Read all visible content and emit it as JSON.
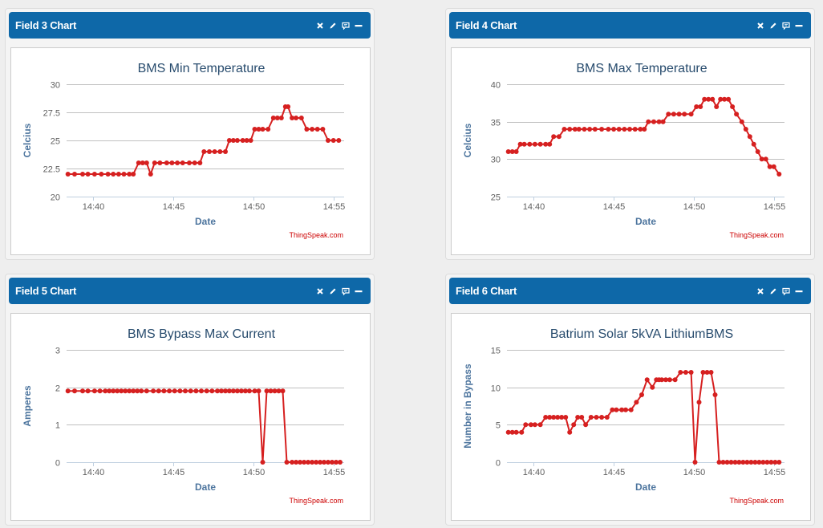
{
  "colors": {
    "header": "#0e68a8",
    "series": "#d62020",
    "grid": "#c0c0c0",
    "axis_title": "#4d759e",
    "title": "#274b6d",
    "credit": "#cc0000"
  },
  "panels": [
    {
      "title": "Field 3 Chart",
      "icons": [
        "close-icon",
        "edit-icon",
        "comment-icon",
        "minimize-icon"
      ],
      "chart_data": {
        "type": "line",
        "title": "BMS Min Temperature",
        "xlabel": "Date",
        "ylabel": "Celcius",
        "credit": "ThingSpeak.com",
        "ylim": [
          20,
          30
        ],
        "xlim": [
          "14:38:20",
          "14:55:40"
        ],
        "yticks": [
          20,
          22.5,
          25,
          27.5,
          30
        ],
        "yticklabels": [
          "20",
          "22.5",
          "25",
          "27.5",
          "30"
        ],
        "xticks": [
          "14:40",
          "14:45",
          "14:50",
          "14:55"
        ],
        "grid": true,
        "legend": "none",
        "series": [
          {
            "x": [
              "14:38:25",
              "14:38:50",
              "14:39:20",
              "14:39:40",
              "14:40:05",
              "14:40:30",
              "14:40:55",
              "14:41:15",
              "14:41:35",
              "14:41:55",
              "14:42:15",
              "14:42:30",
              "14:42:50",
              "14:43:05",
              "14:43:20",
              "14:43:35",
              "14:43:50",
              "14:44:10",
              "14:44:35",
              "14:44:55",
              "14:45:15",
              "14:45:35",
              "14:46:00",
              "14:46:20",
              "14:46:40",
              "14:46:55",
              "14:47:15",
              "14:47:35",
              "14:47:55",
              "14:48:15",
              "14:48:30",
              "14:48:45",
              "14:49:00",
              "14:49:20",
              "14:49:35",
              "14:49:50",
              "14:50:05",
              "14:50:20",
              "14:50:35",
              "14:50:55",
              "14:51:15",
              "14:51:30",
              "14:51:45",
              "14:52:00",
              "14:52:10",
              "14:52:25",
              "14:52:40",
              "14:53:00",
              "14:53:20",
              "14:53:40",
              "14:54:00",
              "14:54:20",
              "14:54:40",
              "14:55:00",
              "14:55:20"
            ],
            "y": [
              22,
              22,
              22,
              22,
              22,
              22,
              22,
              22,
              22,
              22,
              22,
              22,
              23,
              23,
              23,
              22,
              23,
              23,
              23,
              23,
              23,
              23,
              23,
              23,
              23,
              24,
              24,
              24,
              24,
              24,
              25,
              25,
              25,
              25,
              25,
              25,
              26,
              26,
              26,
              26,
              27,
              27,
              27,
              28,
              28,
              27,
              27,
              27,
              26,
              26,
              26,
              26,
              25,
              25,
              25
            ]
          }
        ]
      }
    },
    {
      "title": "Field 4 Chart",
      "icons": [
        "close-icon",
        "edit-icon",
        "comment-icon",
        "minimize-icon"
      ],
      "chart_data": {
        "type": "line",
        "title": "BMS Max Temperature",
        "xlabel": "Date",
        "ylabel": "Celcius",
        "credit": "ThingSpeak.com",
        "ylim": [
          25,
          40
        ],
        "xlim": [
          "14:38:20",
          "14:55:40"
        ],
        "yticks": [
          25,
          30,
          35,
          40
        ],
        "yticklabels": [
          "25",
          "30",
          "35",
          "40"
        ],
        "xticks": [
          "14:40",
          "14:45",
          "14:50",
          "14:55"
        ],
        "grid": true,
        "legend": "none",
        "series": [
          {
            "x": [
              "14:38:25",
              "14:38:40",
              "14:38:55",
              "14:39:10",
              "14:39:25",
              "14:39:45",
              "14:40:05",
              "14:40:25",
              "14:40:45",
              "14:41:00",
              "14:41:15",
              "14:41:35",
              "14:41:55",
              "14:42:15",
              "14:42:35",
              "14:42:50",
              "14:43:10",
              "14:43:30",
              "14:43:50",
              "14:44:15",
              "14:44:40",
              "14:45:00",
              "14:45:20",
              "14:45:40",
              "14:46:00",
              "14:46:20",
              "14:46:40",
              "14:46:55",
              "14:47:10",
              "14:47:30",
              "14:47:50",
              "14:48:05",
              "14:48:25",
              "14:48:45",
              "14:49:05",
              "14:49:25",
              "14:49:50",
              "14:50:10",
              "14:50:25",
              "14:50:40",
              "14:50:55",
              "14:51:10",
              "14:51:25",
              "14:51:40",
              "14:51:55",
              "14:52:10",
              "14:52:25",
              "14:52:40",
              "14:53:00",
              "14:53:15",
              "14:53:30",
              "14:53:45",
              "14:54:00",
              "14:54:15",
              "14:54:30",
              "14:54:45",
              "14:55:00",
              "14:55:20"
            ],
            "y": [
              31,
              31,
              31,
              32,
              32,
              32,
              32,
              32,
              32,
              32,
              33,
              33,
              34,
              34,
              34,
              34,
              34,
              34,
              34,
              34,
              34,
              34,
              34,
              34,
              34,
              34,
              34,
              34,
              35,
              35,
              35,
              35,
              36,
              36,
              36,
              36,
              36,
              37,
              37,
              38,
              38,
              38,
              37,
              38,
              38,
              38,
              37,
              36,
              35,
              34,
              33,
              32,
              31,
              30,
              30,
              29,
              29,
              28
            ]
          }
        ]
      }
    },
    {
      "title": "Field 5 Chart",
      "icons": [
        "close-icon",
        "edit-icon",
        "comment-icon",
        "minimize-icon"
      ],
      "chart_data": {
        "type": "line",
        "title": "BMS Bypass Max Current",
        "xlabel": "Date",
        "ylabel": "Amperes",
        "credit": "ThingSpeak.com",
        "ylim": [
          0,
          3
        ],
        "xlim": [
          "14:38:20",
          "14:55:40"
        ],
        "yticks": [
          0,
          1,
          2,
          3
        ],
        "yticklabels": [
          "0",
          "1",
          "2",
          "3"
        ],
        "xticks": [
          "14:40",
          "14:45",
          "14:50",
          "14:55"
        ],
        "grid": true,
        "legend": "none",
        "series": [
          {
            "x": [
              "14:38:25",
              "14:38:50",
              "14:39:20",
              "14:39:40",
              "14:40:05",
              "14:40:25",
              "14:40:45",
              "14:41:00",
              "14:41:15",
              "14:41:30",
              "14:41:45",
              "14:42:00",
              "14:42:15",
              "14:42:30",
              "14:42:45",
              "14:43:00",
              "14:43:20",
              "14:43:45",
              "14:44:05",
              "14:44:25",
              "14:44:45",
              "14:45:05",
              "14:45:25",
              "14:45:45",
              "14:46:05",
              "14:46:25",
              "14:46:45",
              "14:47:05",
              "14:47:25",
              "14:47:45",
              "14:48:00",
              "14:48:15",
              "14:48:30",
              "14:48:45",
              "14:49:00",
              "14:49:15",
              "14:49:30",
              "14:49:45",
              "14:50:05",
              "14:50:20",
              "14:50:35",
              "14:50:50",
              "14:51:05",
              "14:51:20",
              "14:51:35",
              "14:51:50",
              "14:52:05",
              "14:52:25",
              "14:52:40",
              "14:52:55",
              "14:53:10",
              "14:53:25",
              "14:53:40",
              "14:53:55",
              "14:54:10",
              "14:54:25",
              "14:54:40",
              "14:54:55",
              "14:55:10",
              "14:55:25"
            ],
            "y": [
              1.9,
              1.9,
              1.9,
              1.9,
              1.9,
              1.9,
              1.9,
              1.9,
              1.9,
              1.9,
              1.9,
              1.9,
              1.9,
              1.9,
              1.9,
              1.9,
              1.9,
              1.9,
              1.9,
              1.9,
              1.9,
              1.9,
              1.9,
              1.9,
              1.9,
              1.9,
              1.9,
              1.9,
              1.9,
              1.9,
              1.9,
              1.9,
              1.9,
              1.9,
              1.9,
              1.9,
              1.9,
              1.9,
              1.9,
              1.9,
              0,
              1.9,
              1.9,
              1.9,
              1.9,
              1.9,
              0,
              0,
              0,
              0,
              0,
              0,
              0,
              0,
              0,
              0,
              0,
              0,
              0,
              0
            ]
          }
        ]
      }
    },
    {
      "title": "Field 6 Chart",
      "icons": [
        "close-icon",
        "edit-icon",
        "comment-icon",
        "minimize-icon"
      ],
      "chart_data": {
        "type": "line",
        "title": "Batrium Solar 5kVA LithiumBMS",
        "xlabel": "Date",
        "ylabel": "Number in Bypass",
        "credit": "ThingSpeak.com",
        "ylim": [
          0,
          15
        ],
        "xlim": [
          "14:38:20",
          "14:55:40"
        ],
        "yticks": [
          0,
          5,
          10,
          15
        ],
        "yticklabels": [
          "0",
          "5",
          "10",
          "15"
        ],
        "xticks": [
          "14:40",
          "14:45",
          "14:50",
          "14:55"
        ],
        "grid": true,
        "legend": "none",
        "series": [
          {
            "x": [
              "14:38:25",
              "14:38:40",
              "14:38:55",
              "14:39:15",
              "14:39:30",
              "14:39:50",
              "14:40:05",
              "14:40:25",
              "14:40:45",
              "14:41:00",
              "14:41:15",
              "14:41:30",
              "14:41:45",
              "14:42:00",
              "14:42:15",
              "14:42:30",
              "14:42:45",
              "14:43:00",
              "14:43:15",
              "14:43:35",
              "14:43:55",
              "14:44:15",
              "14:44:35",
              "14:44:55",
              "14:45:10",
              "14:45:30",
              "14:45:45",
              "14:46:05",
              "14:46:25",
              "14:46:45",
              "14:47:05",
              "14:47:25",
              "14:47:40",
              "14:47:50",
              "14:48:00",
              "14:48:15",
              "14:48:30",
              "14:48:50",
              "14:49:10",
              "14:49:30",
              "14:49:50",
              "14:50:05",
              "14:50:20",
              "14:50:35",
              "14:50:50",
              "14:51:05",
              "14:51:20",
              "14:51:35",
              "14:51:50",
              "14:52:05",
              "14:52:20",
              "14:52:35",
              "14:52:50",
              "14:53:05",
              "14:53:20",
              "14:53:35",
              "14:53:50",
              "14:54:05",
              "14:54:20",
              "14:54:35",
              "14:54:50",
              "14:55:05",
              "14:55:20"
            ],
            "y": [
              4,
              4,
              4,
              4,
              5,
              5,
              5,
              5,
              6,
              6,
              6,
              6,
              6,
              6,
              4,
              5,
              6,
              6,
              5,
              6,
              6,
              6,
              6,
              7,
              7,
              7,
              7,
              7,
              8,
              9,
              11,
              10,
              11,
              11,
              11,
              11,
              11,
              11,
              12,
              12,
              12,
              0,
              8,
              12,
              12,
              12,
              9,
              0,
              0,
              0,
              0,
              0,
              0,
              0,
              0,
              0,
              0,
              0,
              0,
              0,
              0,
              0,
              0
            ]
          }
        ]
      }
    }
  ]
}
